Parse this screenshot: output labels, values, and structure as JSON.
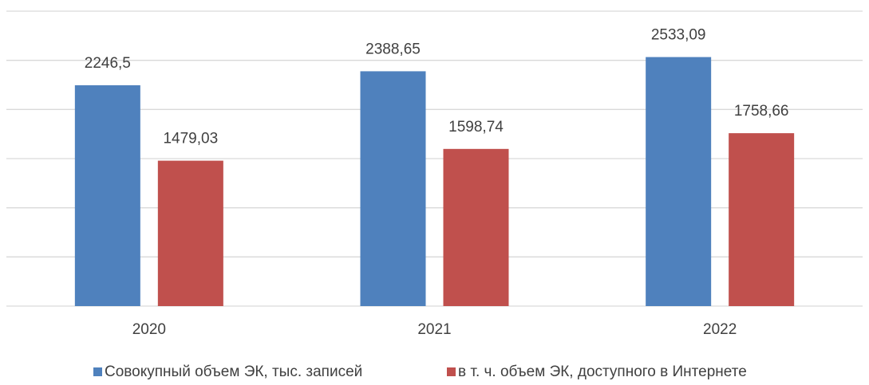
{
  "chart_data": {
    "type": "bar",
    "categories": [
      "2020",
      "2021",
      "2022"
    ],
    "series": [
      {
        "name": "Совокупный объем ЭК, тыс. записей",
        "color": "#4f81bd",
        "values": [
          2246.5,
          2388.65,
          2533.09
        ],
        "value_labels": [
          "2246,5",
          "2388,65",
          "2533,09"
        ]
      },
      {
        "name": "в т. ч. объем ЭК, доступного в Интернете",
        "color": "#c0504d",
        "values": [
          1479.03,
          1598.74,
          1758.66
        ],
        "value_labels": [
          "1479,03",
          "1598,74",
          "1758,66"
        ]
      }
    ],
    "ylim": [
      0,
      3000
    ],
    "yticks": [
      0,
      500,
      1000,
      1500,
      2000,
      2500,
      3000
    ],
    "grid": true,
    "legend": "bottom"
  }
}
